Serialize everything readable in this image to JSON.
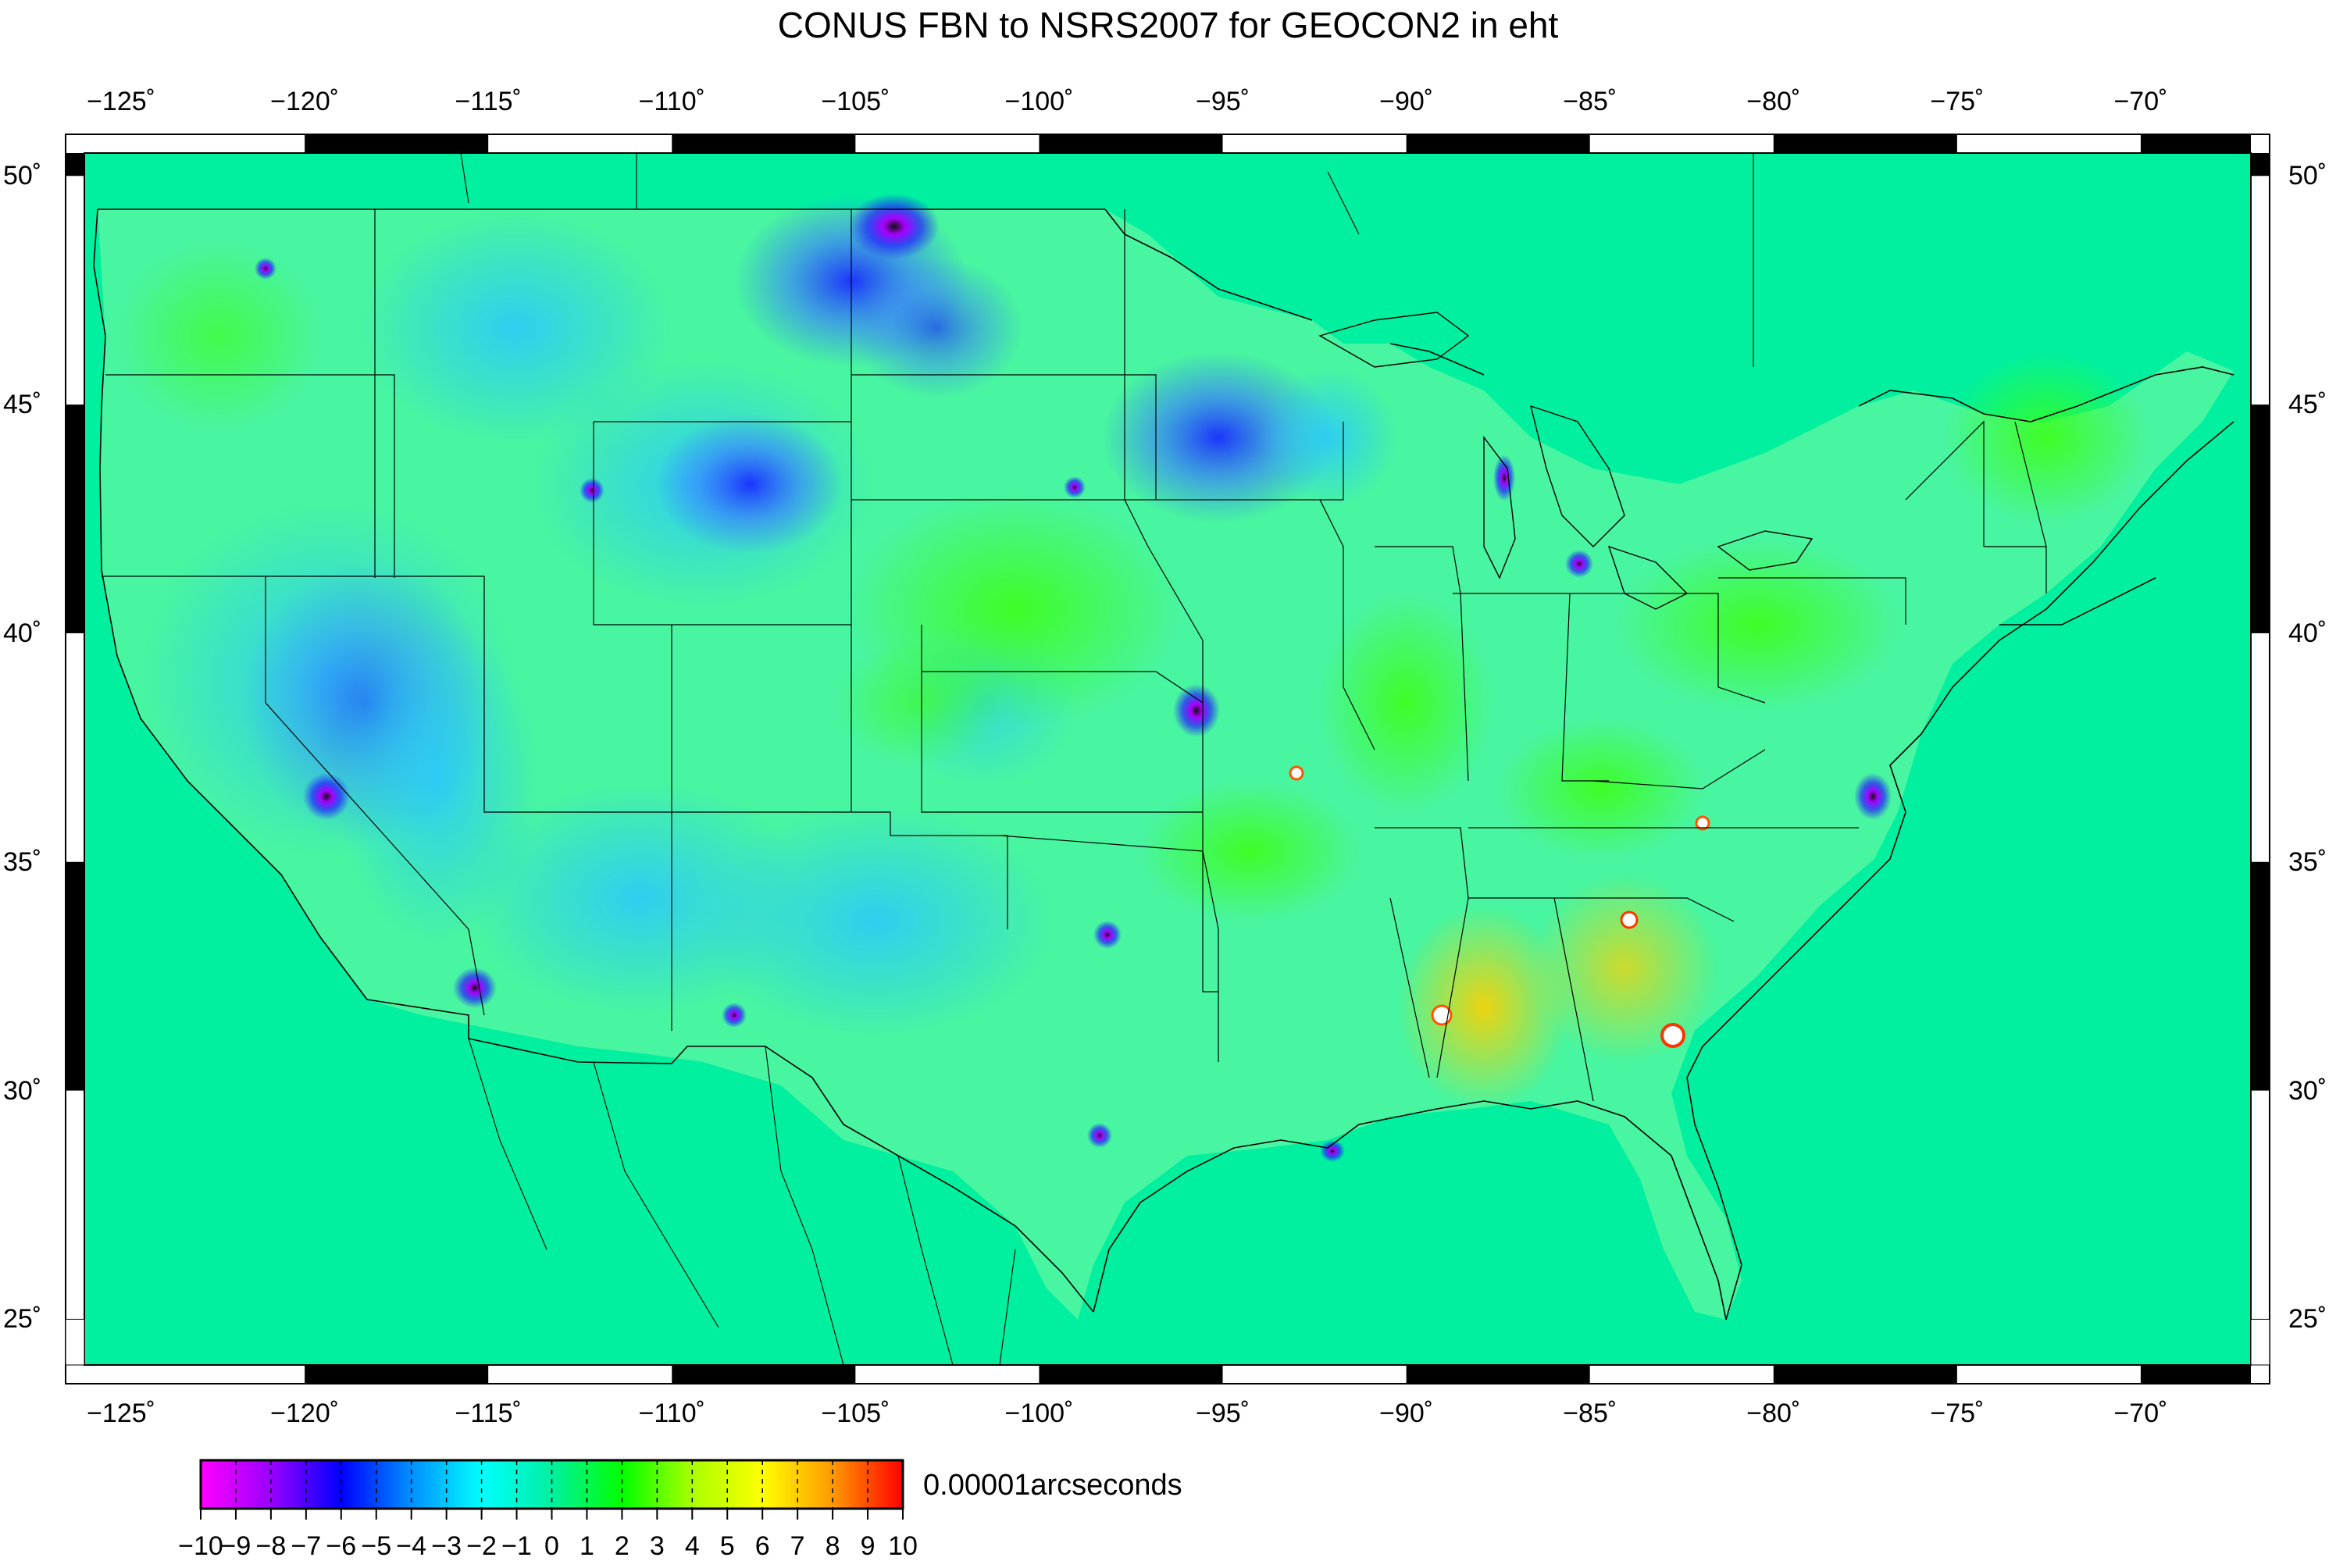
{
  "title": "CONUS FBN to NSRS2007 for GEOCON2 in eht",
  "map": {
    "region": "CONUS",
    "lon_range": [
      -126,
      -67
    ],
    "lat_range": [
      24,
      50.5
    ],
    "lon_ticks": [
      "−125˚",
      "−120˚",
      "−115˚",
      "−110˚",
      "−105˚",
      "−100˚",
      "−95˚",
      "−90˚",
      "−85˚",
      "−80˚",
      "−75˚",
      "−70˚"
    ],
    "lon_tick_values": [
      -125,
      -120,
      -115,
      -110,
      -105,
      -100,
      -95,
      -90,
      -85,
      -80,
      -75,
      -70
    ],
    "lat_ticks": [
      "25˚",
      "30˚",
      "35˚",
      "40˚",
      "45˚",
      "50˚"
    ],
    "lat_tick_values": [
      25,
      30,
      35,
      40,
      45,
      50
    ],
    "background_color": "#00f0a0"
  },
  "colorbar": {
    "units": "0.00001arcseconds",
    "range": [
      -10,
      10
    ],
    "tick_values": [
      -10,
      -9,
      -8,
      -7,
      -6,
      -5,
      -4,
      -3,
      -2,
      -1,
      0,
      1,
      2,
      3,
      4,
      5,
      6,
      7,
      8,
      9,
      10
    ],
    "tick_labels": [
      "−10",
      "−9",
      "−8",
      "−7",
      "−6",
      "−5",
      "−4",
      "−3",
      "−2",
      "−1",
      "0",
      "1",
      "2",
      "3",
      "4",
      "5",
      "6",
      "7",
      "8",
      "9",
      "10"
    ],
    "colors": [
      "#ff00ff",
      "#9900ff",
      "#0000ff",
      "#0090ff",
      "#00ffff",
      "#00f0a0",
      "#00ff00",
      "#aaff00",
      "#ffff00",
      "#ff9900",
      "#ff0000"
    ]
  }
}
